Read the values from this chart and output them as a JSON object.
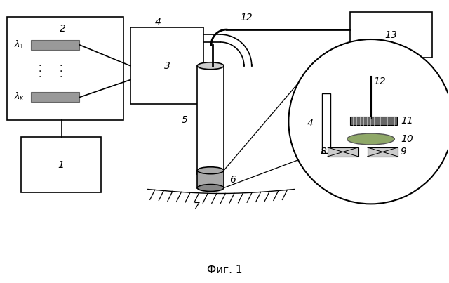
{
  "title": "Фиг. 1",
  "bg_color": "#ffffff",
  "lw": 1.2
}
